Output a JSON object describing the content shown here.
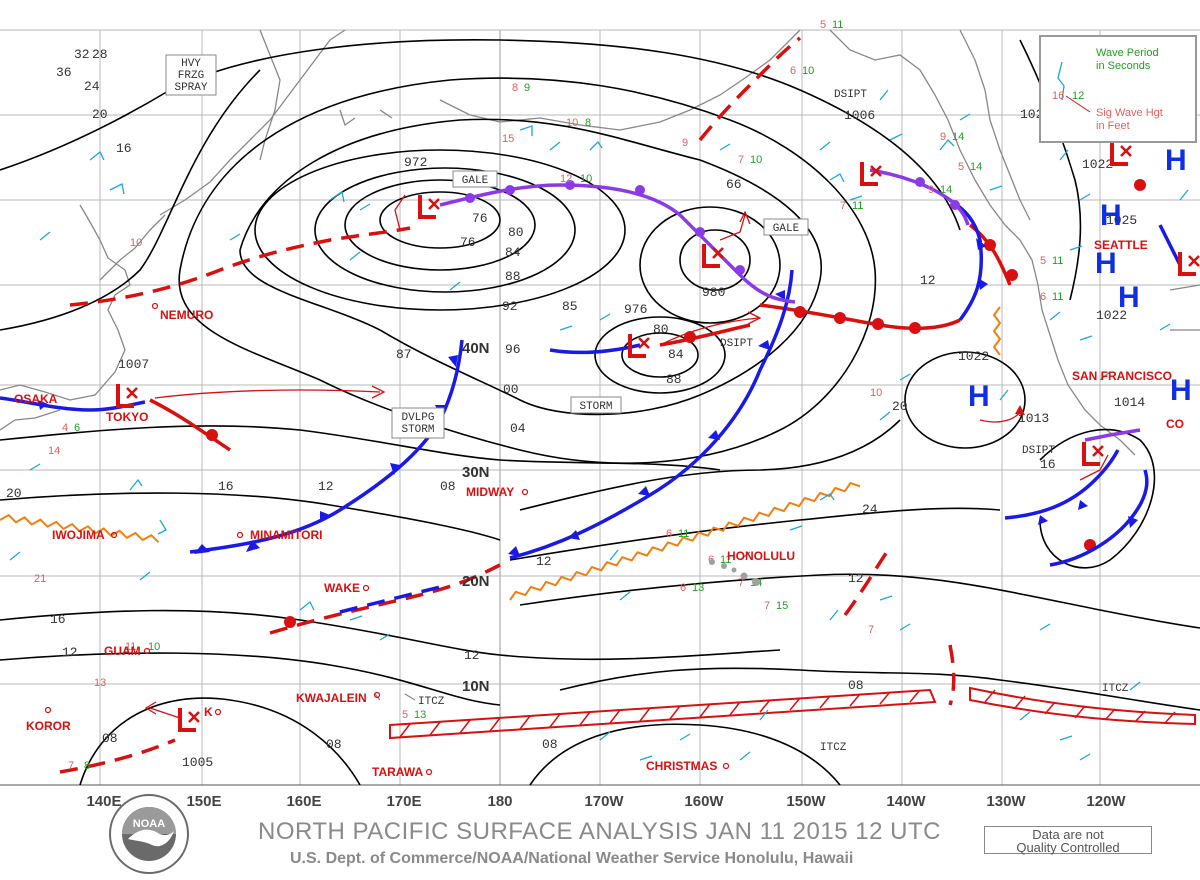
{
  "title": "NORTH PACIFIC SURFACE ANALYSIS JAN 11 2015 12 UTC",
  "subtitle": "U.S. Dept. of Commerce/NOAA/National Weather Service Honolulu, Hawaii",
  "quality_note": "Data are not Quality Controlled",
  "logo_text": "NOAA",
  "legend": {
    "period_label": "Wave Period in Seconds",
    "height_label": "Sig Wave Hgt in Feet",
    "sample_period": "12",
    "sample_height": "16"
  },
  "longitudes": [
    "140E",
    "150E",
    "160E",
    "170E",
    "180",
    "170W",
    "160W",
    "150W",
    "140W",
    "130W",
    "120W"
  ],
  "latitudes": [
    "40N",
    "30N",
    "20N",
    "10N"
  ],
  "stations": [
    {
      "name": "NEMURO"
    },
    {
      "name": "OSAKA"
    },
    {
      "name": "TOKYO"
    },
    {
      "name": "IWOJIMA"
    },
    {
      "name": "MINAMITORI"
    },
    {
      "name": "MIDWAY"
    },
    {
      "name": "WAKE"
    },
    {
      "name": "GUAM"
    },
    {
      "name": "KOROR"
    },
    {
      "name": "KWAJALEIN"
    },
    {
      "name": "TARAWA"
    },
    {
      "name": "CHRISTMAS"
    },
    {
      "name": "HONOLULU"
    },
    {
      "name": "SAN FRANCISCO"
    },
    {
      "name": "SEATTLE"
    },
    {
      "name": "K"
    },
    {
      "name": "CO"
    }
  ],
  "warnings": [
    "HVY FRZG SPRAY",
    "GALE",
    "GALE",
    "STORM",
    "DVLPG STORM",
    "DSIPT",
    "DSIPT",
    "DSIPT"
  ],
  "annotations": [
    "ITCZ",
    "ITCZ",
    "ITCZ"
  ],
  "pressure_centers": [
    {
      "type": "L",
      "value": "972"
    },
    {
      "type": "L",
      "value": "980"
    },
    {
      "type": "L",
      "value": "976"
    },
    {
      "type": "L",
      "value": "1007"
    },
    {
      "type": "L",
      "value": "1005"
    },
    {
      "type": "L",
      "value": "1013"
    },
    {
      "type": "H",
      "value": "1022"
    },
    {
      "type": "H",
      "value": "1022"
    },
    {
      "type": "H",
      "value": "1025"
    },
    {
      "type": "H",
      "value": "1022"
    },
    {
      "type": "H",
      "value": "1014"
    },
    {
      "type": "H",
      "value": "1006"
    },
    {
      "type": "H",
      "value": "102"
    }
  ],
  "isobar_labels": [
    "32",
    "28",
    "36",
    "24",
    "20",
    "16",
    "76",
    "76",
    "80",
    "84",
    "88",
    "92",
    "96",
    "00",
    "04",
    "08",
    "85",
    "84",
    "88",
    "87",
    "80",
    "66",
    "12",
    "12",
    "16",
    "20",
    "24",
    "20",
    "16",
    "12",
    "12",
    "08",
    "08",
    "08",
    "12",
    "16",
    "12",
    "08"
  ],
  "wave_obs": [
    {
      "h": "10",
      "p": ""
    },
    {
      "h": "10",
      "p": "8"
    },
    {
      "h": "12",
      "p": "10"
    },
    {
      "h": "15",
      "p": ""
    },
    {
      "h": "5",
      "p": "11"
    },
    {
      "h": "6",
      "p": "10"
    },
    {
      "h": "9",
      "p": ""
    },
    {
      "h": "7",
      "p": "10"
    },
    {
      "h": "9",
      "p": "14"
    },
    {
      "h": "7",
      "p": "11"
    },
    {
      "h": "8",
      "p": "9"
    },
    {
      "h": "6",
      "p": "11"
    },
    {
      "h": "10",
      "p": ""
    },
    {
      "h": "6",
      "p": "13"
    },
    {
      "h": "7",
      "p": "15"
    },
    {
      "h": "6",
      "p": "11"
    },
    {
      "h": "7",
      "p": "14"
    },
    {
      "h": "7",
      "p": ""
    },
    {
      "h": "13",
      "p": ""
    },
    {
      "h": "11",
      "p": "10"
    },
    {
      "h": "14",
      "p": ""
    },
    {
      "h": "5",
      "p": "13"
    },
    {
      "h": "7",
      "p": "8"
    },
    {
      "h": "21",
      "p": ""
    },
    {
      "h": "5",
      "p": "11"
    },
    {
      "h": "6",
      "p": "11"
    },
    {
      "h": "5",
      "p": "14"
    },
    {
      "h": "9",
      "p": "14"
    },
    {
      "h": "4",
      "p": "6"
    }
  ],
  "colors": {
    "cold_front": "#1a1ae6",
    "warm_front": "#d81010",
    "occluded_front": "#8a3ae6",
    "trough": "#d81010",
    "ridge": "#f08010",
    "itcz": "#d81010",
    "wind_barb": "#1aa8d8",
    "coast": "#888888",
    "grid": "#b0b0b0"
  }
}
